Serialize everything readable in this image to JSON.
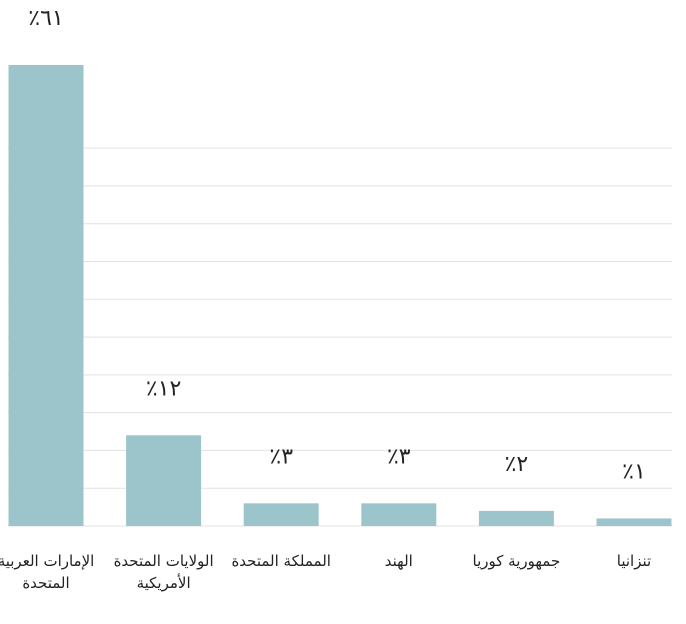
{
  "chart_data": {
    "type": "bar",
    "categories": [
      "الإمارات العربية المتحدة",
      "الولايات المتحدة الأمريكية",
      "المملكة المتحدة",
      "الهند",
      "جمهورية كوريا",
      "تنزانيا"
    ],
    "values": [
      61,
      12,
      3,
      3,
      2,
      1
    ],
    "value_labels": [
      "٪٦١",
      "٪١٢",
      "٪٣",
      "٪٣",
      "٪٢",
      "٪١"
    ],
    "color": "#9bc4cb",
    "ylim": [
      0,
      61
    ],
    "yticks": [
      0,
      5,
      10,
      15,
      20,
      25,
      30,
      35,
      40,
      45,
      50
    ],
    "grid": true
  }
}
